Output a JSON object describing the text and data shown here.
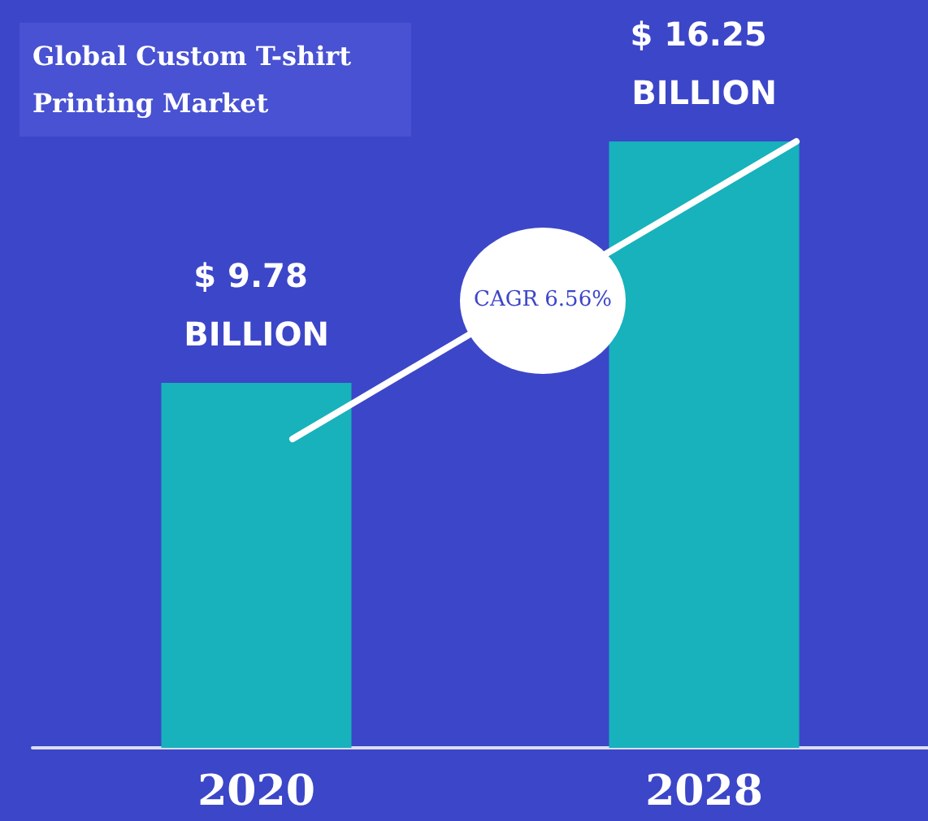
{
  "chart_data": {
    "type": "bar",
    "title": "Global Custom T-shirt Printing Market",
    "categories": [
      "2020",
      "2028"
    ],
    "values": [
      9.78,
      16.25
    ],
    "value_labels": [
      "$ 9.78 BILLION",
      "$ 16.25 BILLION"
    ],
    "color": "#17b2bb",
    "annotations": [
      "CAGR 6.56%"
    ]
  }
}
